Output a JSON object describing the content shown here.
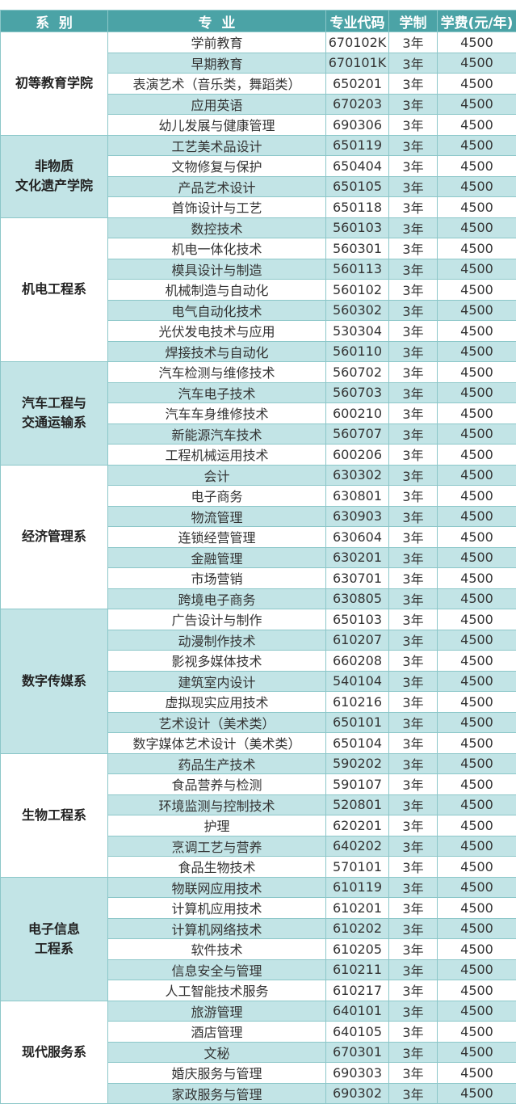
{
  "header": {
    "dept": "系  别",
    "major": "专  业",
    "code": "专业代码",
    "years": "学制",
    "fee": "学费(元/年)"
  },
  "colors": {
    "header": "#4ba3a6",
    "alt_row": "#c2e4e6"
  },
  "departments": [
    {
      "name": "初等教育学院",
      "rows": [
        [
          "学前教育",
          "670102K",
          "3年",
          "4500"
        ],
        [
          "早期教育",
          "670101K",
          "3年",
          "4500"
        ],
        [
          "表演艺术（音乐类，舞蹈类）",
          "650201",
          "3年",
          "4500"
        ],
        [
          "应用英语",
          "670203",
          "3年",
          "4500"
        ],
        [
          "幼儿发展与健康管理",
          "690306",
          "3年",
          "4500"
        ]
      ]
    },
    {
      "name": "非物质\n文化遗产学院",
      "rows": [
        [
          "工艺美术品设计",
          "650119",
          "3年",
          "4500"
        ],
        [
          "文物修复与保护",
          "650404",
          "3年",
          "4500"
        ],
        [
          "产品艺术设计",
          "650105",
          "3年",
          "4500"
        ],
        [
          "首饰设计与工艺",
          "650118",
          "3年",
          "4500"
        ]
      ]
    },
    {
      "name": "机电工程系",
      "rows": [
        [
          "数控技术",
          "560103",
          "3年",
          "4500"
        ],
        [
          "机电一体化技术",
          "560301",
          "3年",
          "4500"
        ],
        [
          "模具设计与制造",
          "560113",
          "3年",
          "4500"
        ],
        [
          "机械制造与自动化",
          "560102",
          "3年",
          "4500"
        ],
        [
          "电气自动化技术",
          "560302",
          "3年",
          "4500"
        ],
        [
          "光伏发电技术与应用",
          "530304",
          "3年",
          "4500"
        ],
        [
          "焊接技术与自动化",
          "560110",
          "3年",
          "4500"
        ]
      ]
    },
    {
      "name": "汽车工程与\n交通运输系",
      "rows": [
        [
          "汽车检测与维修技术",
          "560702",
          "3年",
          "4500"
        ],
        [
          "汽车电子技术",
          "560703",
          "3年",
          "4500"
        ],
        [
          "汽车车身维修技术",
          "600210",
          "3年",
          "4500"
        ],
        [
          "新能源汽车技术",
          "560707",
          "3年",
          "4500"
        ],
        [
          "工程机械运用技术",
          "600206",
          "3年",
          "4500"
        ]
      ]
    },
    {
      "name": "经济管理系",
      "rows": [
        [
          "会计",
          "630302",
          "3年",
          "4500"
        ],
        [
          "电子商务",
          "630801",
          "3年",
          "4500"
        ],
        [
          "物流管理",
          "630903",
          "3年",
          "4500"
        ],
        [
          "连锁经营管理",
          "630604",
          "3年",
          "4500"
        ],
        [
          "金融管理",
          "630201",
          "3年",
          "4500"
        ],
        [
          "市场营销",
          "630701",
          "3年",
          "4500"
        ],
        [
          "跨境电子商务",
          "630805",
          "3年",
          "4500"
        ]
      ]
    },
    {
      "name": "数字传媒系",
      "rows": [
        [
          "广告设计与制作",
          "650103",
          "3年",
          "4500"
        ],
        [
          "动漫制作技术",
          "610207",
          "3年",
          "4500"
        ],
        [
          "影视多媒体技术",
          "660208",
          "3年",
          "4500"
        ],
        [
          "建筑室内设计",
          "540104",
          "3年",
          "4500"
        ],
        [
          "虚拟现实应用技术",
          "610216",
          "3年",
          "4500"
        ],
        [
          "艺术设计（美术类）",
          "650101",
          "3年",
          "4500"
        ],
        [
          "数字媒体艺术设计（美术类）",
          "650104",
          "3年",
          "4500"
        ]
      ]
    },
    {
      "name": "生物工程系",
      "rows": [
        [
          "药品生产技术",
          "590202",
          "3年",
          "4500"
        ],
        [
          "食品营养与检测",
          "590107",
          "3年",
          "4500"
        ],
        [
          "环境监测与控制技术",
          "520801",
          "3年",
          "4500"
        ],
        [
          "护理",
          "620201",
          "3年",
          "4500"
        ],
        [
          "烹调工艺与营养",
          "640202",
          "3年",
          "4500"
        ],
        [
          "食品生物技术",
          "570101",
          "3年",
          "4500"
        ]
      ]
    },
    {
      "name": "电子信息\n工程系",
      "rows": [
        [
          "物联网应用技术",
          "610119",
          "3年",
          "4500"
        ],
        [
          "计算机应用技术",
          "610201",
          "3年",
          "4500"
        ],
        [
          "计算机网络技术",
          "610202",
          "3年",
          "4500"
        ],
        [
          "软件技术",
          "610205",
          "3年",
          "4500"
        ],
        [
          "信息安全与管理",
          "610211",
          "3年",
          "4500"
        ],
        [
          "人工智能技术服务",
          "610217",
          "3年",
          "4500"
        ]
      ]
    },
    {
      "name": "现代服务系",
      "rows": [
        [
          "旅游管理",
          "640101",
          "3年",
          "4500"
        ],
        [
          "酒店管理",
          "640105",
          "3年",
          "4500"
        ],
        [
          "文秘",
          "670301",
          "3年",
          "4500"
        ],
        [
          "婚庆服务与管理",
          "690303",
          "3年",
          "4500"
        ],
        [
          "家政服务与管理",
          "690302",
          "3年",
          "4500"
        ]
      ]
    }
  ]
}
